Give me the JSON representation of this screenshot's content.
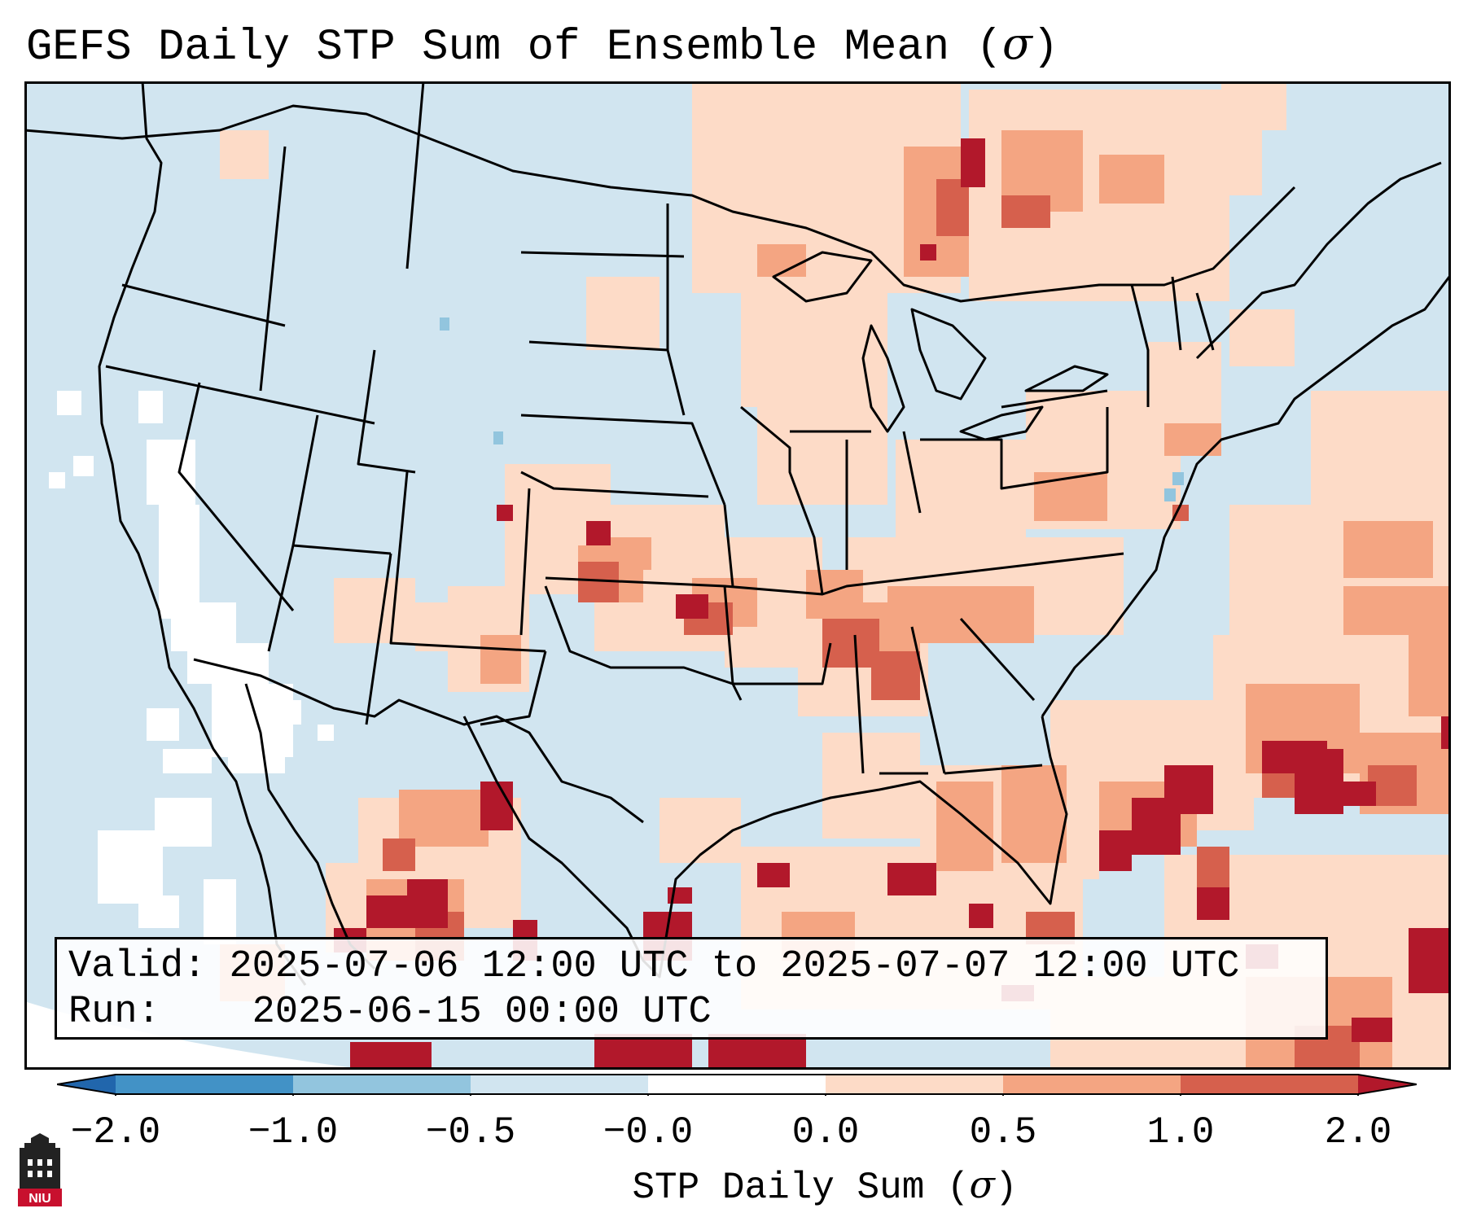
{
  "title": {
    "prefix": "GEFS Daily STP Sum of Ensemble Mean (",
    "symbol": "σ",
    "suffix": ")"
  },
  "info": {
    "valid_label": "Valid:",
    "valid_value": "2025-07-06 12:00 UTC to 2025-07-07 12:00 UTC",
    "run_label": "Run:",
    "run_value": "2025-06-15 00:00 UTC"
  },
  "colorbar": {
    "label_prefix": "STP Daily Sum (",
    "label_symbol": "σ",
    "label_suffix": ")",
    "ticks": [
      "−2.0",
      "−1.0",
      "−0.5",
      "−0.0",
      "0.0",
      "0.5",
      "1.0",
      "2.0"
    ],
    "segments": [
      {
        "range": "-2.0 to -1.0",
        "color": "#4292c6"
      },
      {
        "range": "-1.0 to -0.5",
        "color": "#92c5de"
      },
      {
        "range": "-0.5 to -0.0",
        "color": "#d1e5f0"
      },
      {
        "range": "-0.0 to 0.0",
        "color": "#ffffff"
      },
      {
        "range": "0.0 to 0.5",
        "color": "#fddbc7"
      },
      {
        "range": "0.5 to 1.0",
        "color": "#f4a582"
      },
      {
        "range": "1.0 to 2.0",
        "color": "#d6604d"
      }
    ],
    "under_color": "#2166ac",
    "over_color": "#b2182b"
  },
  "map": {
    "background_color": "#d1e5f0",
    "outside_color": "#ffffff",
    "border_color": "#000000",
    "region": "Contiguous United States, southern Canada, northern Mexico, Gulf of Mexico, western Atlantic"
  },
  "logo": {
    "text": "NIU",
    "color": "#c8102e"
  }
}
